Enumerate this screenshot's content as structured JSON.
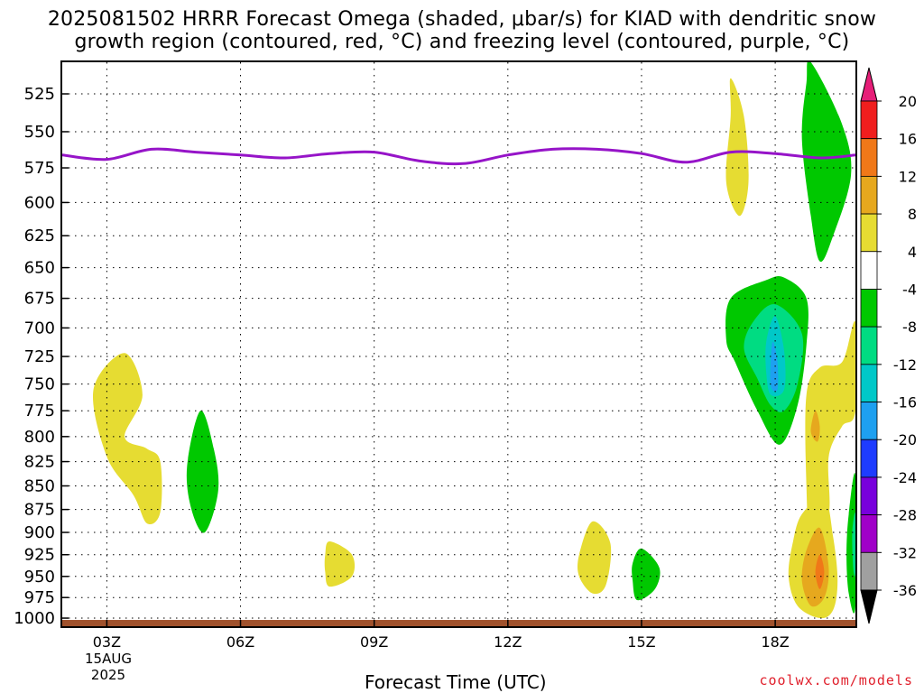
{
  "chart_data": {
    "type": "contour",
    "title_line1": "2025081502 HRRR Forecast Omega (shaded, μbar/s) for KIAD with dendritic snow",
    "title_line2": "growth region (contoured, red, °C) and freezing level (contoured, purple, °C)",
    "xlabel": "Forecast Time (UTC)",
    "x_ticks": [
      "03Z",
      "06Z",
      "09Z",
      "12Z",
      "15Z",
      "18Z"
    ],
    "x_tick_hours": [
      3,
      6,
      9,
      12,
      15,
      18
    ],
    "x_date_line1": "15AUG",
    "x_date_line2": "2025",
    "xlim": [
      2,
      19.8
    ],
    "y_ticks": [
      "525",
      "550",
      "575",
      "600",
      "625",
      "650",
      "675",
      "700",
      "725",
      "750",
      "775",
      "800",
      "825",
      "850",
      "875",
      "900",
      "925",
      "950",
      "975",
      "1000"
    ],
    "ylim": [
      505,
      1010
    ],
    "y_scale": "log",
    "grid": true,
    "freezing_level": [
      [
        2,
        566
      ],
      [
        3,
        569
      ],
      [
        4,
        562
      ],
      [
        5,
        564
      ],
      [
        6,
        566
      ],
      [
        7,
        568
      ],
      [
        8,
        565
      ],
      [
        9,
        564
      ],
      [
        10,
        570
      ],
      [
        11,
        572
      ],
      [
        12,
        566
      ],
      [
        13,
        562
      ],
      [
        14,
        562
      ],
      [
        15,
        565
      ],
      [
        16,
        571
      ],
      [
        17,
        564
      ],
      [
        18,
        565
      ],
      [
        19,
        568
      ],
      [
        19.8,
        566
      ]
    ],
    "omega_regions": [
      {
        "level": "4 to 8",
        "color": "#e6dc32",
        "points": [
          [
            17.0,
            515
          ],
          [
            17.3,
            540
          ],
          [
            17.4,
            585
          ],
          [
            17.2,
            610
          ],
          [
            16.9,
            585
          ],
          [
            17.0,
            540
          ]
        ]
      },
      {
        "level": "-8 to -4",
        "color": "#00c800",
        "points": [
          [
            18.8,
            505
          ],
          [
            19.5,
            545
          ],
          [
            19.7,
            580
          ],
          [
            19.3,
            625
          ],
          [
            19.0,
            645
          ],
          [
            18.8,
            610
          ],
          [
            18.6,
            555
          ],
          [
            18.7,
            518
          ]
        ]
      },
      {
        "level": "-8 to -4",
        "color": "#00c800",
        "points": [
          [
            17.8,
            660
          ],
          [
            18.2,
            658
          ],
          [
            18.7,
            675
          ],
          [
            18.7,
            715
          ],
          [
            18.5,
            770
          ],
          [
            18.1,
            808
          ],
          [
            17.6,
            775
          ],
          [
            17.1,
            730
          ],
          [
            16.9,
            710
          ],
          [
            17.0,
            675
          ]
        ]
      },
      {
        "level": "-12 to -8",
        "color": "#00dc82",
        "points": [
          [
            18.0,
            680
          ],
          [
            18.6,
            705
          ],
          [
            18.5,
            750
          ],
          [
            18.2,
            775
          ],
          [
            17.9,
            770
          ],
          [
            17.6,
            745
          ],
          [
            17.3,
            718
          ],
          [
            17.5,
            695
          ]
        ]
      },
      {
        "level": "-16 to -12",
        "color": "#00c8c8",
        "points": [
          [
            18.0,
            690
          ],
          [
            18.2,
            720
          ],
          [
            18.2,
            755
          ],
          [
            17.9,
            760
          ],
          [
            17.8,
            740
          ],
          [
            17.8,
            712
          ]
        ]
      },
      {
        "level": "-20 to -16",
        "color": "#1ea0f0",
        "points": [
          [
            17.95,
            712
          ],
          [
            18.05,
            730
          ],
          [
            18.05,
            755
          ],
          [
            17.9,
            752
          ],
          [
            17.9,
            728
          ]
        ]
      },
      {
        "level": "4 to 8",
        "color": "#e6dc32",
        "points": [
          [
            19.8,
            695
          ],
          [
            19.8,
            775
          ],
          [
            19.5,
            790
          ],
          [
            19.2,
            820
          ],
          [
            19.2,
            880
          ],
          [
            18.8,
            905
          ],
          [
            18.7,
            850
          ],
          [
            18.7,
            760
          ],
          [
            19.0,
            735
          ],
          [
            19.5,
            730
          ]
        ]
      },
      {
        "level": "8 to 12",
        "color": "#e6a81e",
        "points": [
          [
            18.9,
            775
          ],
          [
            19.0,
            790
          ],
          [
            18.95,
            805
          ],
          [
            18.8,
            795
          ]
        ]
      },
      {
        "level": "4 to 8",
        "color": "#e6dc32",
        "points": [
          [
            19.1,
            862
          ],
          [
            19.3,
            905
          ],
          [
            19.4,
            955
          ],
          [
            19.3,
            990
          ],
          [
            19.0,
            1000
          ],
          [
            18.5,
            985
          ],
          [
            18.3,
            950
          ],
          [
            18.4,
            910
          ],
          [
            18.6,
            880
          ]
        ]
      },
      {
        "level": "8 to 12",
        "color": "#e6a81e",
        "points": [
          [
            19.0,
            895
          ],
          [
            19.2,
            940
          ],
          [
            19.1,
            975
          ],
          [
            18.8,
            985
          ],
          [
            18.6,
            955
          ],
          [
            18.7,
            920
          ]
        ]
      },
      {
        "level": "12 to 16",
        "color": "#f07818",
        "points": [
          [
            19.0,
            925
          ],
          [
            19.1,
            945
          ],
          [
            19.0,
            965
          ],
          [
            18.9,
            945
          ]
        ]
      },
      {
        "level": "-8 to -4",
        "color": "#00c800",
        "points": [
          [
            19.8,
            840
          ],
          [
            19.8,
            985
          ],
          [
            19.65,
            970
          ],
          [
            19.6,
            925
          ],
          [
            19.65,
            880
          ]
        ]
      },
      {
        "level": "-12 to -8",
        "color": "#00dc82",
        "points": [
          [
            19.8,
            880
          ],
          [
            19.8,
            945
          ],
          [
            19.75,
            940
          ],
          [
            19.73,
            900
          ]
        ]
      },
      {
        "level": "4 to 8",
        "color": "#e6dc32",
        "points": [
          [
            3.4,
            722
          ],
          [
            3.8,
            760
          ],
          [
            3.4,
            800
          ],
          [
            3.9,
            812
          ],
          [
            4.2,
            825
          ],
          [
            4.2,
            878
          ],
          [
            3.9,
            890
          ],
          [
            3.6,
            860
          ],
          [
            3.0,
            820
          ],
          [
            2.7,
            755
          ]
        ]
      },
      {
        "level": "-8 to -4",
        "color": "#00c800",
        "points": [
          [
            5.1,
            775
          ],
          [
            5.4,
            812
          ],
          [
            5.5,
            855
          ],
          [
            5.2,
            900
          ],
          [
            4.9,
            875
          ],
          [
            4.8,
            830
          ]
        ]
      },
      {
        "level": "4 to 8",
        "color": "#e6dc32",
        "points": [
          [
            8.0,
            910
          ],
          [
            8.5,
            925
          ],
          [
            8.5,
            950
          ],
          [
            8.0,
            962
          ],
          [
            7.9,
            945
          ],
          [
            7.9,
            925
          ]
        ]
      },
      {
        "level": "4 to 8",
        "color": "#e6dc32",
        "points": [
          [
            13.9,
            888
          ],
          [
            14.3,
            912
          ],
          [
            14.2,
            960
          ],
          [
            13.9,
            970
          ],
          [
            13.6,
            950
          ],
          [
            13.6,
            925
          ]
        ]
      },
      {
        "level": "-8 to -4",
        "color": "#00c800",
        "points": [
          [
            15.0,
            918
          ],
          [
            15.4,
            940
          ],
          [
            15.3,
            965
          ],
          [
            14.9,
            978
          ],
          [
            14.8,
            955
          ],
          [
            14.8,
            935
          ]
        ]
      }
    ],
    "colorbar": {
      "labels": [
        "20",
        "16",
        "12",
        "8",
        "4",
        "-4",
        "-8",
        "-12",
        "-16",
        "-20",
        "-24",
        "-28",
        "-32",
        "-36"
      ],
      "colors": [
        "#f01e1e",
        "#f07818",
        "#e6a81e",
        "#e6dc32",
        "#ffffff",
        "#00c800",
        "#00dc82",
        "#00c8c8",
        "#1ea0f0",
        "#1e3cff",
        "#7800dc",
        "#a000c8",
        "#a0a0a0"
      ],
      "top_arrow_color": "#e61e78",
      "bottom_arrow_color": "#000000"
    },
    "ground_color": "#a0522d",
    "freezing_color": "#9614c8"
  },
  "footer": {
    "credit": "coolwx.com/models"
  }
}
